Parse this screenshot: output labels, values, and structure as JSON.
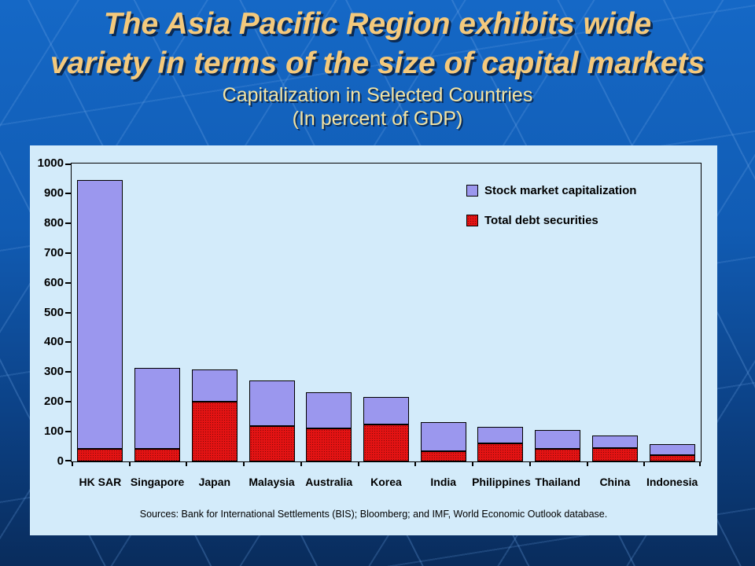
{
  "slide": {
    "title_line1": "The Asia Pacific Region exhibits wide",
    "title_line2": "variety in terms of the size of capital markets",
    "subtitle_line1": "Capitalization in Selected Countries",
    "subtitle_line2": "(In percent of GDP)",
    "source_note": "Sources:  Bank for International Settlements (BIS); Bloomberg; and IMF, World Economic Outlook database.",
    "colors": {
      "title": "#F4C97C",
      "subtitle": "#F3E3A2",
      "background_top": "#1568C6",
      "background_bottom": "#092C5C",
      "panel_bg": "#D3EBFA"
    }
  },
  "chart_data": {
    "type": "bar",
    "stacked": true,
    "title": "Capitalization in Selected Countries",
    "subtitle": "(In percent of GDP)",
    "xlabel": "",
    "ylabel": "",
    "ylim": [
      0,
      1000
    ],
    "ytick_step": 100,
    "ytick_labels": [
      "0",
      "100",
      "200",
      "300",
      "400",
      "500",
      "600",
      "700",
      "800",
      "900",
      "1000"
    ],
    "grid": false,
    "legend_position": "top-right",
    "categories": [
      "HK SAR",
      "Singapore",
      "Japan",
      "Malaysia",
      "Australia",
      "Korea",
      "India",
      "Philippines",
      "Thailand",
      "China",
      "Indonesia"
    ],
    "series": [
      {
        "name": "Total debt securities",
        "color": "#E31313",
        "pattern": "dotted",
        "values": [
          42,
          42,
          200,
          118,
          110,
          124,
          35,
          60,
          42,
          44,
          20
        ]
      },
      {
        "name": "Stock market capitalization",
        "color": "#9B97EE",
        "pattern": "solid",
        "values": [
          903,
          271,
          110,
          155,
          121,
          92,
          96,
          56,
          64,
          44,
          37
        ]
      }
    ],
    "stack_totals": [
      945,
      313,
      310,
      273,
      231,
      216,
      131,
      116,
      106,
      88,
      57
    ]
  }
}
